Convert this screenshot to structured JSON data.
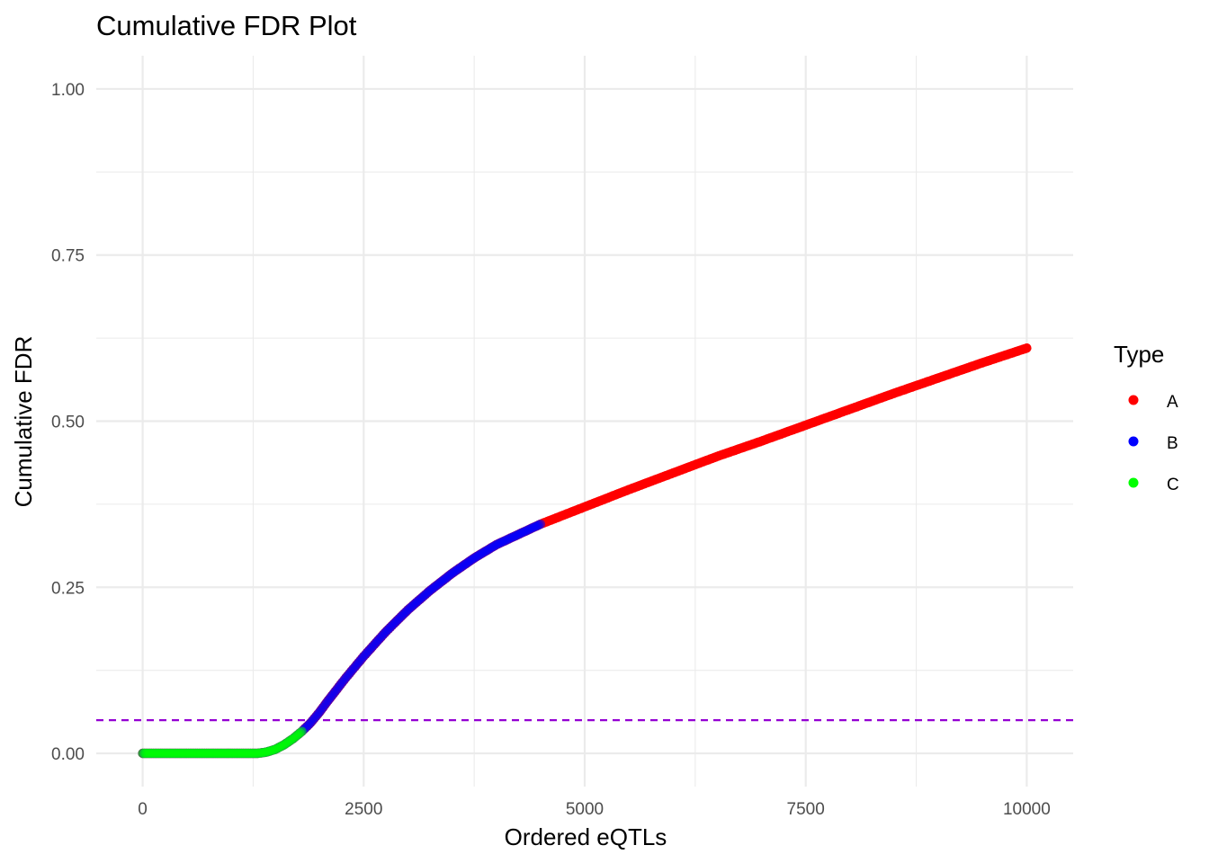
{
  "chart_data": {
    "type": "scatter",
    "title": "Cumulative FDR Plot",
    "xlabel": "Ordered eQTLs",
    "ylabel": "Cumulative FDR",
    "xlim": [
      -525,
      10525
    ],
    "ylim": [
      -0.05,
      1.05
    ],
    "x_ticks": [
      0,
      2500,
      5000,
      7500,
      10000
    ],
    "x_tick_labels": [
      "0",
      "2500",
      "5000",
      "7500",
      "10000"
    ],
    "y_ticks": [
      0,
      0.25,
      0.5,
      0.75,
      1.0
    ],
    "y_tick_labels": [
      "0.00",
      "0.25",
      "0.50",
      "0.75",
      "1.00"
    ],
    "grid": true,
    "legend": {
      "title": "Type",
      "placement": "right",
      "entries": [
        {
          "name": "A",
          "color": "#ff0000"
        },
        {
          "name": "B",
          "color": "#0000ff"
        },
        {
          "name": "C",
          "color": "#00ff00"
        }
      ]
    },
    "reference_line": {
      "y": 0.05,
      "style": "dashed",
      "color": "#9400d3"
    },
    "curve": {
      "x": [
        0,
        500,
        1000,
        1300,
        1400,
        1500,
        1600,
        1700,
        1800,
        1900,
        2000,
        2100,
        2200,
        2300,
        2400,
        2500,
        2750,
        3000,
        3250,
        3500,
        3750,
        4000,
        4500,
        5000,
        5500,
        6000,
        6500,
        7000,
        7500,
        8000,
        8500,
        9000,
        9500,
        10000
      ],
      "y": [
        0.0,
        0.0,
        0.0,
        0.0,
        0.002,
        0.006,
        0.013,
        0.022,
        0.033,
        0.046,
        0.062,
        0.08,
        0.097,
        0.114,
        0.13,
        0.146,
        0.183,
        0.216,
        0.245,
        0.271,
        0.294,
        0.314,
        0.345,
        0.371,
        0.397,
        0.422,
        0.447,
        0.47,
        0.494,
        0.518,
        0.542,
        0.565,
        0.588,
        0.61
      ]
    },
    "series": [
      {
        "name": "A",
        "x_range": [
          0,
          10000
        ]
      },
      {
        "name": "B",
        "x_range": [
          0,
          4500
        ]
      },
      {
        "name": "C",
        "x_range": [
          0,
          1800
        ]
      }
    ]
  }
}
